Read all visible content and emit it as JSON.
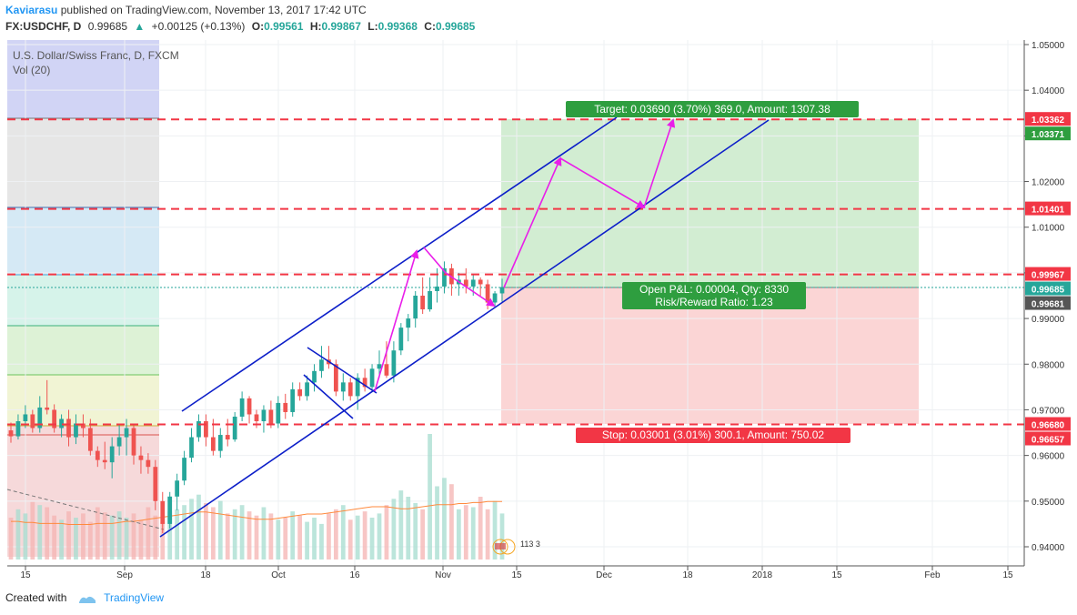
{
  "header": {
    "author": "Kaviarasu",
    "published_text": "published on TradingView.com, November 13, 2017 17:42 UTC",
    "symbol": "FX:USDCHF, D",
    "last": "0.99685",
    "change": "+0.00125 (+0.13%)",
    "open_label": "O:",
    "open": "0.99561",
    "high_label": "H:",
    "high": "0.99867",
    "low_label": "L:",
    "low": "0.99368",
    "close_label": "C:",
    "close": "0.99685"
  },
  "legend": {
    "title": "U.S. Dollar/Swiss Franc, D, FXCM",
    "vol": "Vol (20)"
  },
  "footer": {
    "created": "Created with",
    "brand": "TradingView"
  },
  "chart_data": {
    "type": "candlestick",
    "title": "U.S. Dollar/Swiss Franc, D, FXCM",
    "ylim": [
      0.935,
      1.052
    ],
    "y_ticks": [
      "1.05000",
      "1.04000",
      "1.03000",
      "1.02000",
      "1.01000",
      "1.00000",
      "0.99000",
      "0.98000",
      "0.97000",
      "0.96000",
      "0.95000",
      "0.94000"
    ],
    "x_ticks": [
      "15",
      "Sep",
      "18",
      "Oct",
      "16",
      "Nov",
      "15",
      "Dec",
      "18",
      "2018",
      "15",
      "Feb",
      "15"
    ],
    "price_tags": [
      {
        "label": "1.03362",
        "value": 1.03362,
        "color": "#f23645"
      },
      {
        "label": "1.03371",
        "value": 1.03371,
        "color": "#2e9e3f"
      },
      {
        "label": "1.01401",
        "value": 1.01401,
        "color": "#f23645"
      },
      {
        "label": "0.99967",
        "value": 0.99967,
        "color": "#f23645"
      },
      {
        "label": "0.99685",
        "value": 0.99685,
        "color": "#26a69a"
      },
      {
        "label": "0.99681",
        "value": 0.99681,
        "color": "#555555"
      },
      {
        "label": "0.96680",
        "value": 0.9668,
        "color": "#f23645"
      },
      {
        "label": "0.96657",
        "value": 0.96657,
        "color": "#f23645"
      }
    ],
    "dashed_levels": [
      1.03362,
      1.01401,
      0.99967,
      0.9668
    ],
    "position": {
      "entry": 0.99685,
      "target": 1.03362,
      "stop": 0.9668,
      "target_label": "Target: 0.03690 (3.70%) 369.0, Amount: 1307.38",
      "stop_label": "Stop: 0.03001 (3.01%) 300.1, Amount: 750.02",
      "pnl_label": "Open P&L: 0.00004, Qty: 8330",
      "rr_label": "Risk/Reward Ratio: 1.23"
    },
    "colors": {
      "up": "#26a69a",
      "down": "#ef5350",
      "channel": "#0d1fc9",
      "arrow": "#e91ee9",
      "level": "#f23645"
    },
    "note_label": "113 3",
    "candles": [
      [
        0.9655,
        0.9672,
        0.9628,
        0.9642
      ],
      [
        0.9642,
        0.969,
        0.9635,
        0.9675
      ],
      [
        0.9675,
        0.971,
        0.966,
        0.969
      ],
      [
        0.969,
        0.97,
        0.965,
        0.966
      ],
      [
        0.966,
        0.973,
        0.965,
        0.9705
      ],
      [
        0.9705,
        0.9765,
        0.969,
        0.97
      ],
      [
        0.97,
        0.9712,
        0.965,
        0.966
      ],
      [
        0.966,
        0.969,
        0.964,
        0.968
      ],
      [
        0.968,
        0.97,
        0.962,
        0.964
      ],
      [
        0.964,
        0.969,
        0.9625,
        0.967
      ],
      [
        0.967,
        0.969,
        0.964,
        0.966
      ],
      [
        0.966,
        0.968,
        0.96,
        0.961
      ],
      [
        0.961,
        0.962,
        0.9575,
        0.959
      ],
      [
        0.959,
        0.963,
        0.957,
        0.9585
      ],
      [
        0.9585,
        0.964,
        0.955,
        0.962
      ],
      [
        0.962,
        0.967,
        0.96,
        0.964
      ],
      [
        0.964,
        0.968,
        0.96,
        0.966
      ],
      [
        0.966,
        0.967,
        0.958,
        0.96
      ],
      [
        0.96,
        0.962,
        0.956,
        0.959
      ],
      [
        0.959,
        0.9605,
        0.956,
        0.9575
      ],
      [
        0.9575,
        0.959,
        0.948,
        0.95
      ],
      [
        0.95,
        0.952,
        0.943,
        0.945
      ],
      [
        0.945,
        0.952,
        0.944,
        0.951
      ],
      [
        0.951,
        0.956,
        0.948,
        0.9545
      ],
      [
        0.9545,
        0.961,
        0.9535,
        0.9595
      ],
      [
        0.9595,
        0.966,
        0.9585,
        0.964
      ],
      [
        0.964,
        0.969,
        0.963,
        0.9675
      ],
      [
        0.9675,
        0.969,
        0.962,
        0.964
      ],
      [
        0.964,
        0.968,
        0.96,
        0.961
      ],
      [
        0.961,
        0.966,
        0.9595,
        0.9645
      ],
      [
        0.9645,
        0.968,
        0.962,
        0.9635
      ],
      [
        0.9635,
        0.9695,
        0.963,
        0.9685
      ],
      [
        0.9685,
        0.974,
        0.9675,
        0.9725
      ],
      [
        0.9725,
        0.973,
        0.967,
        0.969
      ],
      [
        0.969,
        0.97,
        0.966,
        0.9675
      ],
      [
        0.9675,
        0.971,
        0.965,
        0.97
      ],
      [
        0.97,
        0.972,
        0.966,
        0.967
      ],
      [
        0.967,
        0.973,
        0.966,
        0.9715
      ],
      [
        0.9715,
        0.9735,
        0.968,
        0.9695
      ],
      [
        0.9695,
        0.976,
        0.9685,
        0.9745
      ],
      [
        0.9745,
        0.976,
        0.972,
        0.973
      ],
      [
        0.973,
        0.9775,
        0.972,
        0.976
      ],
      [
        0.976,
        0.98,
        0.974,
        0.9785
      ],
      [
        0.9785,
        0.984,
        0.977,
        0.981
      ],
      [
        0.981,
        0.984,
        0.979,
        0.98
      ],
      [
        0.98,
        0.981,
        0.973,
        0.974
      ],
      [
        0.974,
        0.978,
        0.972,
        0.976
      ],
      [
        0.976,
        0.977,
        0.972,
        0.973
      ],
      [
        0.973,
        0.978,
        0.97,
        0.977
      ],
      [
        0.977,
        0.979,
        0.974,
        0.975
      ],
      [
        0.975,
        0.98,
        0.974,
        0.979
      ],
      [
        0.979,
        0.983,
        0.977,
        0.98
      ],
      [
        0.98,
        0.985,
        0.977,
        0.9775
      ],
      [
        0.9775,
        0.985,
        0.976,
        0.983
      ],
      [
        0.983,
        0.989,
        0.982,
        0.988
      ],
      [
        0.988,
        0.991,
        0.985,
        0.99
      ],
      [
        0.99,
        0.996,
        0.988,
        0.995
      ],
      [
        0.995,
        0.999,
        0.991,
        0.992
      ],
      [
        0.992,
        0.999,
        0.9915,
        0.996
      ],
      [
        0.996,
        1.001,
        0.9935,
        0.997
      ],
      [
        0.997,
        1.0025,
        0.9955,
        1.001
      ],
      [
        1.001,
        1.002,
        0.995,
        0.9975
      ],
      [
        0.9975,
        1.0,
        0.995,
        0.9985
      ],
      [
        0.9985,
        1.001,
        0.9955,
        0.997
      ],
      [
        0.997,
        0.9995,
        0.995,
        0.9985
      ],
      [
        0.9985,
        0.999,
        0.995,
        0.9975
      ],
      [
        0.9975,
        0.9985,
        0.992,
        0.9935
      ],
      [
        0.9935,
        0.996,
        0.9925,
        0.9955
      ],
      [
        0.9955,
        0.9987,
        0.9937,
        0.9969
      ]
    ],
    "volumes": [
      40,
      48,
      44,
      55,
      52,
      50,
      42,
      38,
      46,
      40,
      44,
      36,
      50,
      45,
      42,
      46,
      40,
      44,
      38,
      50,
      42,
      36,
      46,
      48,
      52,
      58,
      62,
      54,
      50,
      56,
      44,
      48,
      52,
      46,
      42,
      50,
      44,
      38,
      40,
      46,
      42,
      36,
      40,
      34,
      44,
      48,
      52,
      38,
      42,
      46,
      40,
      44,
      52,
      58,
      66,
      60,
      54,
      48,
      120,
      70,
      78,
      72,
      48,
      52,
      50,
      60,
      48,
      56,
      44
    ],
    "volume_ma": [
      26,
      26,
      25,
      25,
      24,
      24,
      24,
      24,
      23,
      23,
      23,
      23,
      24,
      24,
      24,
      25,
      26,
      26,
      27,
      28,
      29,
      30,
      31,
      32,
      33,
      34,
      35,
      35,
      34,
      33,
      32,
      31,
      30,
      29,
      28,
      28,
      28,
      29,
      30,
      31,
      32,
      33,
      33,
      33,
      34,
      35,
      36,
      37,
      38,
      39,
      40,
      40,
      40,
      39,
      38,
      38,
      39,
      40,
      41,
      42,
      42,
      42,
      43,
      43,
      44,
      44,
      45,
      45,
      45
    ]
  }
}
